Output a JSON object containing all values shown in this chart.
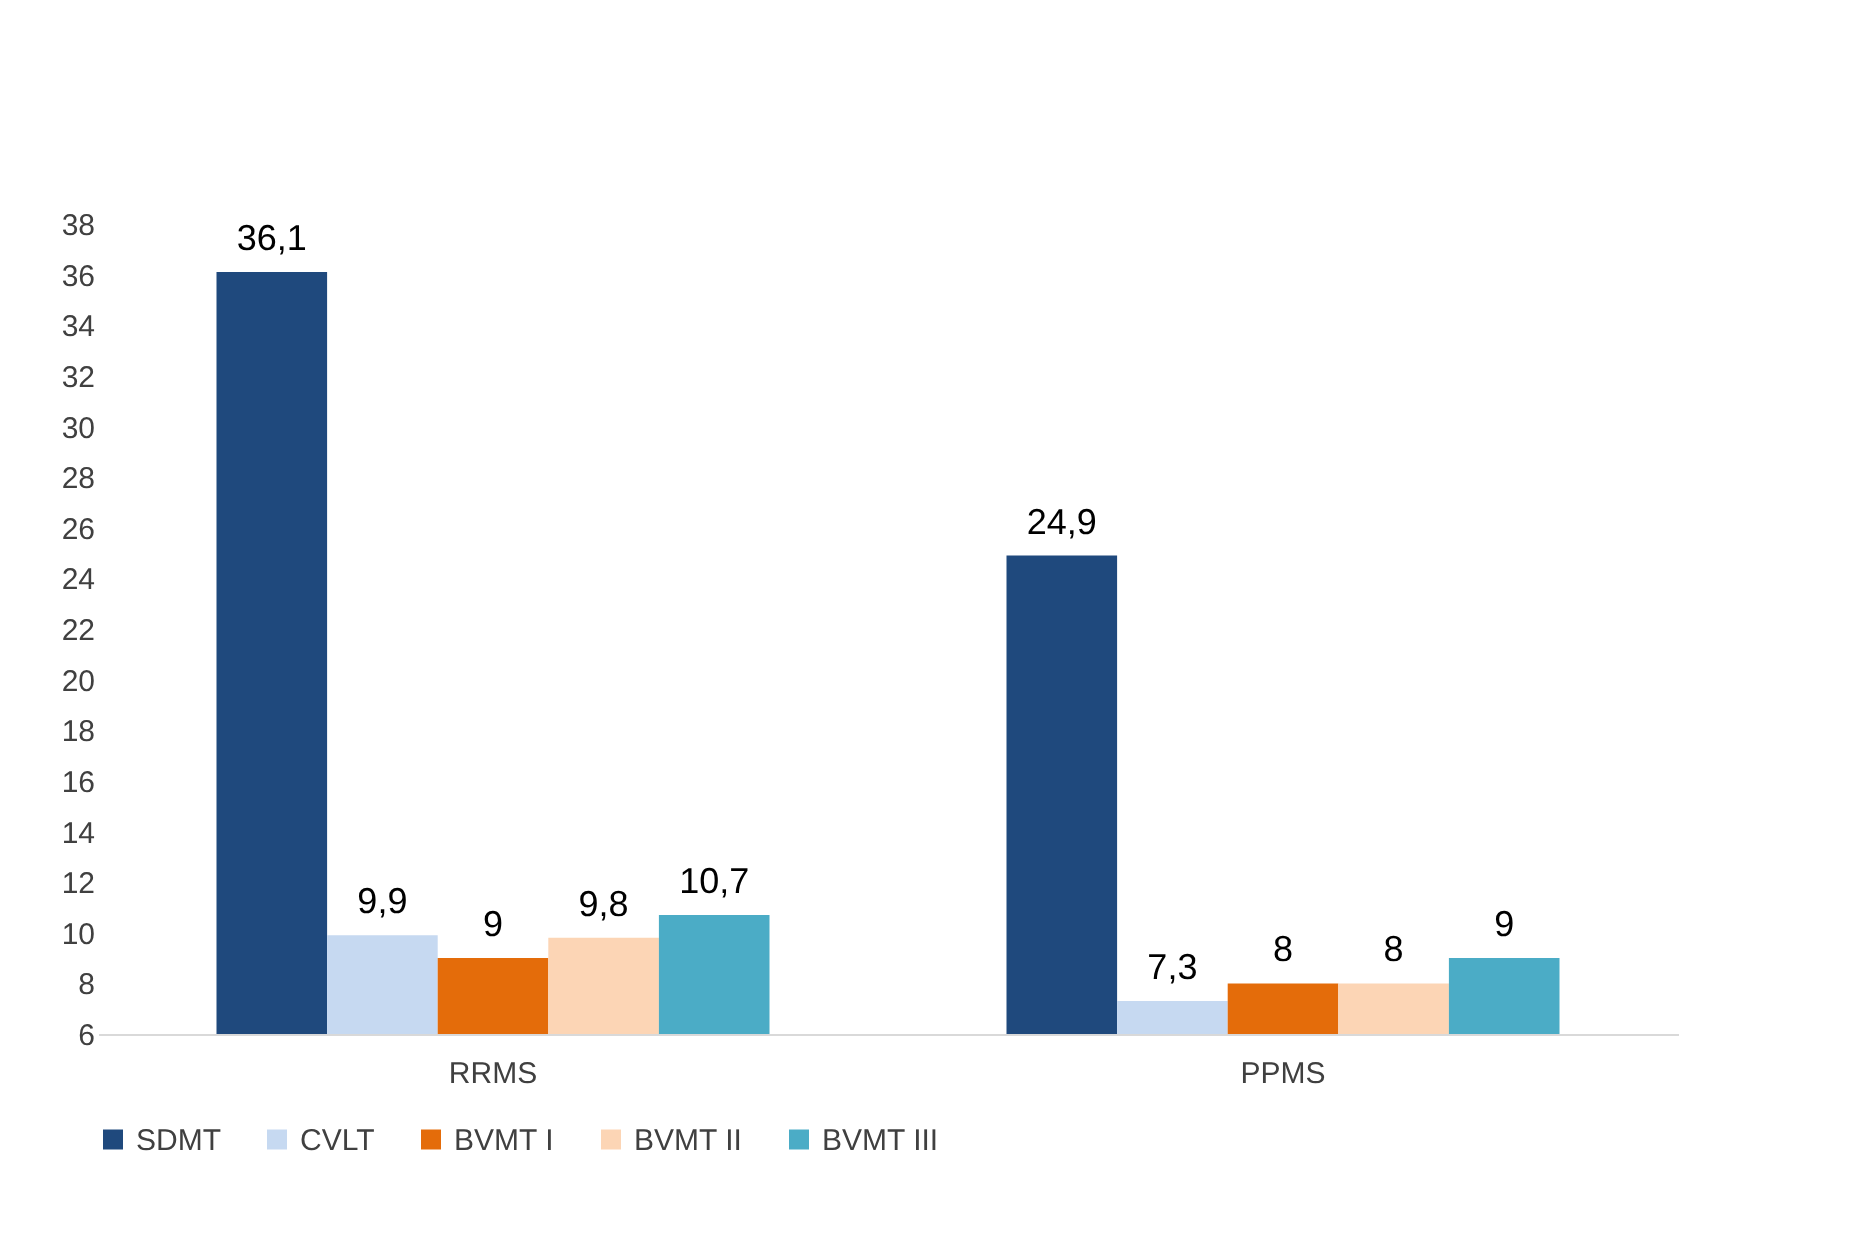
{
  "chart_data": {
    "type": "bar",
    "categories": [
      "RRMS",
      "PPMS"
    ],
    "series": [
      {
        "name": "SDMT",
        "color": "#1f497d",
        "values": [
          36.1,
          24.9
        ],
        "value_labels": [
          "36,1",
          "24,9"
        ]
      },
      {
        "name": "CVLT",
        "color": "#c6d9f1",
        "values": [
          9.9,
          7.3
        ],
        "value_labels": [
          "9,9",
          "7,3"
        ]
      },
      {
        "name": "BVMT I",
        "color": "#e46c0a",
        "values": [
          9,
          8
        ],
        "value_labels": [
          "9",
          "8"
        ]
      },
      {
        "name": "BVMT II",
        "color": "#fcd5b5",
        "values": [
          9.8,
          8
        ],
        "value_labels": [
          "9,8",
          "8"
        ]
      },
      {
        "name": "BVMT III",
        "color": "#4bacc6",
        "values": [
          10.7,
          9
        ],
        "value_labels": [
          "10,7",
          "9"
        ]
      }
    ],
    "ylim": [
      6,
      38
    ],
    "yticks": [
      6,
      8,
      10,
      12,
      14,
      16,
      18,
      20,
      22,
      24,
      26,
      28,
      30,
      32,
      34,
      36,
      38
    ],
    "grid": false,
    "legend": "bottom"
  }
}
